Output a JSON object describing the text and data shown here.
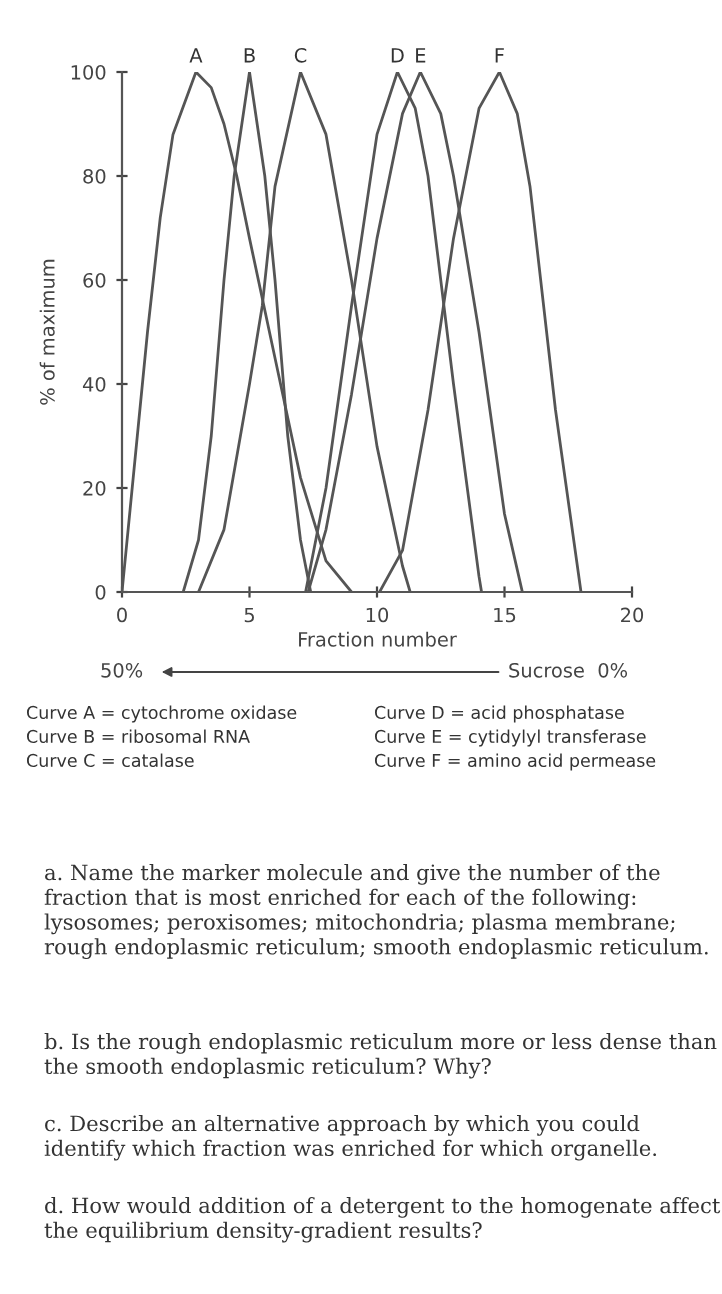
{
  "chart_data": {
    "type": "line",
    "xlabel": "Fraction number",
    "ylabel": "% of maximum",
    "xlim": [
      0,
      20
    ],
    "xticks": [
      0,
      5,
      10,
      15,
      20
    ],
    "ylim": [
      0,
      100
    ],
    "yticks": [
      0,
      20,
      40,
      60,
      80,
      100
    ],
    "grid": false,
    "legend": false,
    "marker": "none",
    "line_style": "solid",
    "series": [
      {
        "name": "A",
        "color": "#555555",
        "x": [
          0,
          0.5,
          1,
          1.5,
          2,
          2.9,
          3.5,
          4,
          4.5,
          5,
          6,
          7,
          8,
          9
        ],
        "values": [
          0,
          25,
          50,
          72,
          88,
          100,
          97,
          90,
          80,
          68,
          45,
          22,
          6,
          0
        ]
      },
      {
        "name": "B",
        "color": "#555555",
        "x": [
          2.4,
          3,
          3.5,
          4,
          4.4,
          5,
          5.6,
          6,
          6.5,
          7,
          7.4
        ],
        "values": [
          0,
          10,
          30,
          60,
          80,
          100,
          80,
          60,
          30,
          10,
          0
        ]
      },
      {
        "name": "C",
        "color": "#555555",
        "x": [
          3,
          4,
          5,
          5.5,
          6,
          7,
          8,
          9,
          10,
          11,
          11.3
        ],
        "values": [
          0,
          12,
          40,
          55,
          78,
          100,
          88,
          60,
          28,
          5,
          0
        ]
      },
      {
        "name": "D",
        "color": "#555555",
        "x": [
          7.2,
          8,
          9,
          10,
          10.8,
          11.5,
          12,
          13,
          14,
          14.1
        ],
        "values": [
          0,
          20,
          55,
          88,
          100,
          93,
          80,
          40,
          3,
          0
        ]
      },
      {
        "name": "E",
        "color": "#555555",
        "x": [
          7.3,
          8,
          9,
          10,
          11,
          11.7,
          12.5,
          13,
          14,
          15,
          15.7
        ],
        "values": [
          0,
          12,
          38,
          68,
          92,
          100,
          92,
          80,
          50,
          15,
          0
        ]
      },
      {
        "name": "F",
        "color": "#555555",
        "x": [
          10.1,
          11,
          12,
          13,
          14,
          14.8,
          15.5,
          16,
          17,
          18
        ],
        "values": [
          0,
          8,
          35,
          68,
          93,
          100,
          92,
          78,
          35,
          0
        ]
      }
    ],
    "annotations": [
      "50%",
      "Sucrose  0%",
      "Curve A = cytochrome oxidase",
      "Curve B = ribosomal RNA",
      "Curve C = catalase",
      "Curve D = acid phosphatase",
      "Curve E = cytidylyl transferase",
      "Curve F = amino acid permease",
      "a. Name the marker molecule and give the number of the fraction that is most enriched for each of the following: lysosomes; peroxisomes; mitochondria; plasma membrane; rough endoplasmic reticulum; smooth endoplasmic reticulum.",
      "b. Is the rough endoplasmic reticulum more or less dense than the smooth endoplasmic reticulum? Why?",
      "c. Describe an alternative approach by which you could identify which fraction was enriched for which organelle.",
      "d. How would addition of a detergent to the homogenate affect the equilibrium density-gradient results?"
    ]
  }
}
